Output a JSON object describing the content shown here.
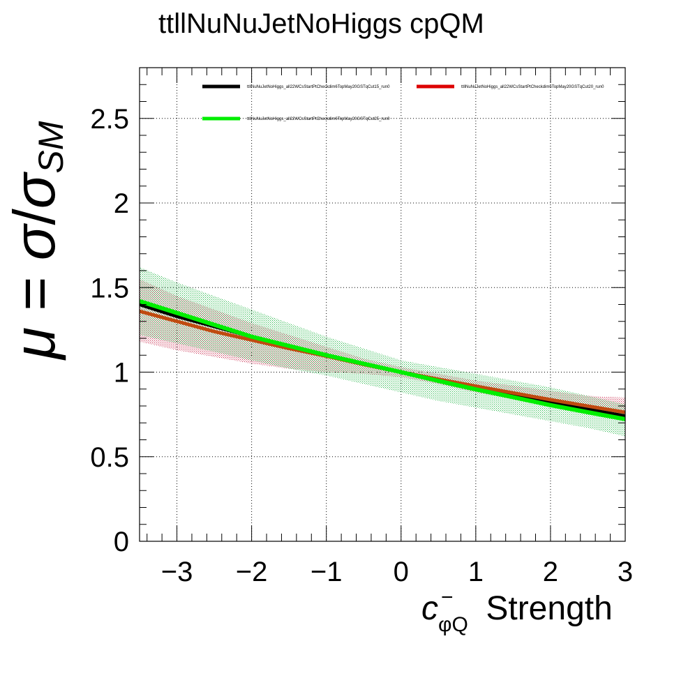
{
  "chart_data": {
    "type": "line",
    "title": "ttllNuNuJetNoHiggs cpQM",
    "xlabel": {
      "symbol": "c",
      "superscript": "−",
      "subscript": "φQ",
      "suffix": " Strength"
    },
    "ylabel": {
      "mu": "μ",
      "equals": " = ",
      "sigma": "σ",
      "slash": "/",
      "sigma2": "σ",
      "subscript": "SM"
    },
    "xlim": [
      -3.5,
      3.0
    ],
    "ylim": [
      0,
      2.8
    ],
    "x_ticks": [
      {
        "value": -3,
        "label": "−3"
      },
      {
        "value": -2,
        "label": "−2"
      },
      {
        "value": -1,
        "label": "−1"
      },
      {
        "value": 0,
        "label": "0"
      },
      {
        "value": 1,
        "label": "1"
      },
      {
        "value": 2,
        "label": "2"
      },
      {
        "value": 3,
        "label": "3"
      }
    ],
    "y_ticks": [
      {
        "value": 0,
        "label": "0"
      },
      {
        "value": 0.5,
        "label": "0.5"
      },
      {
        "value": 1,
        "label": "1"
      },
      {
        "value": 1.5,
        "label": "1.5"
      },
      {
        "value": 2,
        "label": "2"
      },
      {
        "value": 2.5,
        "label": "2.5"
      }
    ],
    "grid": true,
    "legend_position": "top",
    "x": [
      -3.5,
      -3,
      -2.5,
      -2,
      -1.5,
      -1,
      -0.5,
      0,
      0.5,
      1,
      1.5,
      2,
      2.5,
      3
    ],
    "series": [
      {
        "name": "ttllNuNuJetNoHiggs_all22WCsStartPtCheckdim6TopMay20GST_run0 qCut15",
        "label": "ttllNuNuJetNoHiggs_all22WCsStartPtCheckdim6TopMay20GSTqCut15_run0",
        "color": "#000000",
        "values": [
          1.4,
          1.33,
          1.27,
          1.21,
          1.15,
          1.1,
          1.05,
          1.0,
          0.955,
          0.91,
          0.865,
          0.82,
          0.78,
          0.74
        ]
      },
      {
        "label": "ttllNuNuJetNoHiggs_all22WCsStartPtCheckdim6TopMay20GSTqCut20_run0",
        "color": "#dd0000",
        "line_color": "#c04a10",
        "band_color": "#cc3355",
        "values": [
          1.36,
          1.3,
          1.24,
          1.19,
          1.14,
          1.095,
          1.045,
          1.0,
          0.958,
          0.917,
          0.877,
          0.837,
          0.799,
          0.762
        ],
        "band_lower": [
          1.18,
          1.13,
          1.09,
          1.05,
          1.02,
          1.0,
          0.99,
          0.97,
          0.93,
          0.88,
          0.84,
          0.8,
          0.76,
          0.72
        ],
        "band_upper": [
          1.55,
          1.45,
          1.37,
          1.29,
          1.22,
          1.15,
          1.08,
          1.03,
          0.99,
          0.95,
          0.92,
          0.89,
          0.86,
          0.85
        ]
      },
      {
        "label": "ttllNuNuJetNoHiggs_all22WCsStartPtCheckdim6TopMay20GSTqCut25_run0",
        "color": "#00ee00",
        "band_color": "#33bb55",
        "values": [
          1.42,
          1.35,
          1.28,
          1.21,
          1.155,
          1.1,
          1.05,
          1.0,
          0.948,
          0.898,
          0.852,
          0.805,
          0.763,
          0.722
        ],
        "band_lower": [
          1.22,
          1.17,
          1.12,
          1.07,
          1.02,
          0.98,
          0.93,
          0.88,
          0.83,
          0.79,
          0.75,
          0.71,
          0.67,
          0.62
        ],
        "band_upper": [
          1.62,
          1.53,
          1.45,
          1.37,
          1.29,
          1.21,
          1.14,
          1.07,
          1.03,
          0.99,
          0.95,
          0.91,
          0.86,
          0.81
        ]
      }
    ]
  }
}
